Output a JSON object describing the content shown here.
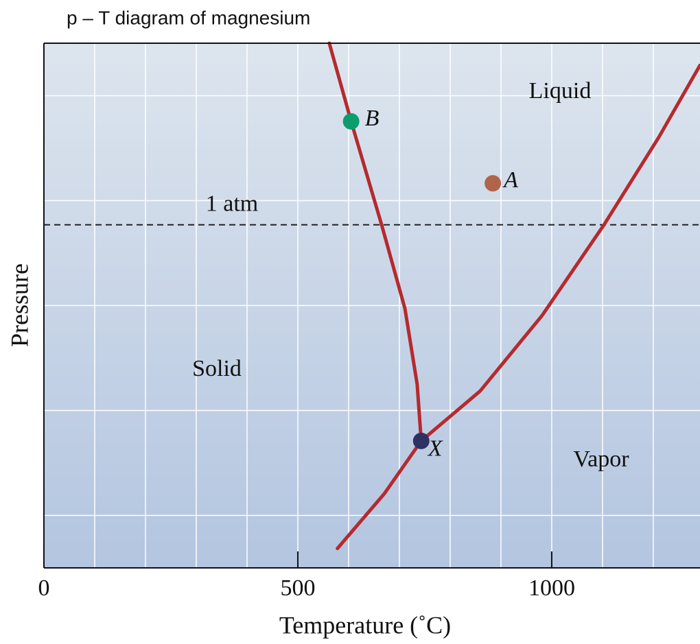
{
  "chart_data": {
    "type": "line",
    "title": "p – T diagram of magnesium",
    "x_label": "Temperature (˚C)",
    "y_label": "Pressure",
    "xlim": [
      0,
      1292
    ],
    "ylim": [
      0,
      10
    ],
    "xticks": [
      0,
      500,
      1000
    ],
    "xgrid": [
      100,
      200,
      300,
      400,
      500,
      600,
      700,
      800,
      900,
      1000,
      1100,
      1200
    ],
    "ygrid": [
      1,
      3,
      5,
      7,
      9
    ],
    "grid": true,
    "series": [
      {
        "color": "#b52a2e",
        "x": [
          562,
          605,
          665,
          711,
          735,
          743
        ],
        "values": [
          10,
          8.51,
          6.54,
          4.94,
          3.5,
          2.42
        ]
      },
      {
        "color": "#b52a2e",
        "x": [
          578,
          670,
          743,
          859,
          981,
          1103,
          1211,
          1292
        ],
        "values": [
          0.37,
          1.41,
          2.42,
          3.37,
          4.81,
          6.54,
          8.21,
          9.58
        ]
      }
    ],
    "points": [
      {
        "label": "B",
        "x": 605,
        "y": 8.51,
        "color": "#0b9e6c"
      },
      {
        "label": "A",
        "x": 884,
        "y": 7.33,
        "color": "#b0654a"
      },
      {
        "label": "X",
        "x": 743,
        "y": 2.42,
        "color": "#2e3163"
      }
    ],
    "hlines": [
      {
        "label": "1 atm",
        "y": 6.54
      }
    ],
    "annotations": [
      "Liquid",
      "Solid",
      "Vapor"
    ]
  }
}
